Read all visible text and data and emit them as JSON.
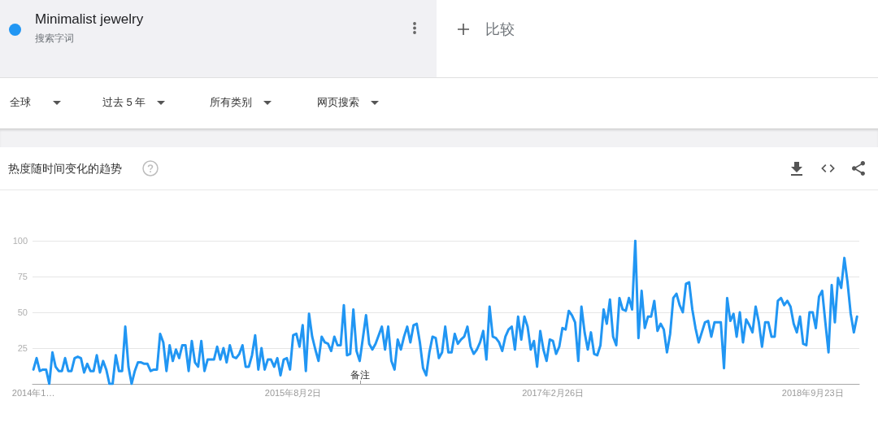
{
  "chart_data": {
    "type": "line",
    "title": "热度随时间变化的趋势",
    "annotations": [
      "搜索字词",
      "比较",
      "全球",
      "过去 5 年",
      "所有类别",
      "网页搜索",
      "备注"
    ],
    "x": [
      "2014-01-05",
      "2014-01-12",
      "2014-01-19",
      "2014-01-26",
      "2014-02-02",
      "2014-02-09",
      "2014-02-16",
      "2014-02-23",
      "2014-03-02",
      "2014-03-09",
      "2014-03-16",
      "2014-03-23",
      "2014-03-30",
      "2014-04-06",
      "2014-04-13",
      "2014-04-20",
      "2014-04-27",
      "2014-05-04",
      "2014-05-11",
      "2014-05-18",
      "2014-05-25",
      "2014-06-01",
      "2014-06-08",
      "2014-06-15",
      "2014-06-22",
      "2014-06-29",
      "2014-07-06",
      "2014-07-13",
      "2014-07-20",
      "2014-07-27",
      "2014-08-03",
      "2014-08-10",
      "2014-08-17",
      "2014-08-24",
      "2014-08-31",
      "2014-09-07",
      "2014-09-14",
      "2014-09-21",
      "2014-09-28",
      "2014-10-05",
      "2014-10-12",
      "2014-10-19",
      "2014-10-26",
      "2014-11-02",
      "2014-11-09",
      "2014-11-16",
      "2014-11-23",
      "2014-11-30",
      "2014-12-07",
      "2014-12-14",
      "2014-12-21",
      "2014-12-28",
      "2015-01-04",
      "2015-01-11",
      "2015-01-18",
      "2015-01-25",
      "2015-02-01",
      "2015-02-08",
      "2015-02-15",
      "2015-02-22",
      "2015-03-01",
      "2015-03-08",
      "2015-03-15",
      "2015-03-22",
      "2015-03-29",
      "2015-04-05",
      "2015-04-12",
      "2015-04-19",
      "2015-04-26",
      "2015-05-03",
      "2015-05-10",
      "2015-05-17",
      "2015-05-24",
      "2015-05-31",
      "2015-06-07",
      "2015-06-14",
      "2015-06-21",
      "2015-06-28",
      "2015-07-05",
      "2015-07-12",
      "2015-07-19",
      "2015-07-26",
      "2015-08-02",
      "2015-08-09",
      "2015-08-16",
      "2015-08-23",
      "2015-08-30",
      "2015-09-06",
      "2015-09-13",
      "2015-09-20",
      "2015-09-27",
      "2015-10-04",
      "2015-10-11",
      "2015-10-18",
      "2015-10-25",
      "2015-11-01",
      "2015-11-08",
      "2015-11-15",
      "2015-11-22",
      "2015-11-29",
      "2015-12-06",
      "2015-12-13",
      "2015-12-20",
      "2015-12-27",
      "2016-01-03",
      "2016-01-10",
      "2016-01-17",
      "2016-01-24",
      "2016-01-31",
      "2016-02-07",
      "2016-02-14",
      "2016-02-21",
      "2016-02-28",
      "2016-03-06",
      "2016-03-13",
      "2016-03-20",
      "2016-03-27",
      "2016-04-03",
      "2016-04-10",
      "2016-04-17",
      "2016-04-24",
      "2016-05-01",
      "2016-05-08",
      "2016-05-15",
      "2016-05-22",
      "2016-05-29",
      "2016-06-05",
      "2016-06-12",
      "2016-06-19",
      "2016-06-26",
      "2016-07-03",
      "2016-07-10",
      "2016-07-17",
      "2016-07-24",
      "2016-07-31",
      "2016-08-07",
      "2016-08-14",
      "2016-08-21",
      "2016-08-28",
      "2016-09-04",
      "2016-09-11",
      "2016-09-18",
      "2016-09-25",
      "2016-10-02",
      "2016-10-09",
      "2016-10-16",
      "2016-10-23",
      "2016-10-30",
      "2016-11-06",
      "2016-11-13",
      "2016-11-20",
      "2016-11-27",
      "2016-12-04",
      "2016-12-11",
      "2016-12-18",
      "2016-12-25",
      "2017-01-01",
      "2017-01-08",
      "2017-01-15",
      "2017-01-22",
      "2017-01-29",
      "2017-02-05",
      "2017-02-12",
      "2017-02-19",
      "2017-02-26",
      "2017-03-05",
      "2017-03-12",
      "2017-03-19",
      "2017-03-26",
      "2017-04-02",
      "2017-04-09",
      "2017-04-16",
      "2017-04-23",
      "2017-04-30",
      "2017-05-07",
      "2017-05-14",
      "2017-05-21",
      "2017-05-28",
      "2017-06-04",
      "2017-06-11",
      "2017-06-18",
      "2017-06-25",
      "2017-07-02",
      "2017-07-09",
      "2017-07-16",
      "2017-07-23",
      "2017-07-30",
      "2017-08-06",
      "2017-08-13",
      "2017-08-20",
      "2017-08-27",
      "2017-09-03",
      "2017-09-10",
      "2017-09-17",
      "2017-09-24",
      "2017-10-01",
      "2017-10-08",
      "2017-10-15",
      "2017-10-22",
      "2017-10-29",
      "2017-11-05",
      "2017-11-12",
      "2017-11-19",
      "2017-11-26",
      "2017-12-03",
      "2017-12-10",
      "2017-12-17",
      "2017-12-24",
      "2017-12-31",
      "2018-01-07",
      "2018-01-14",
      "2018-01-21",
      "2018-01-28",
      "2018-02-04",
      "2018-02-11",
      "2018-02-18",
      "2018-02-25",
      "2018-03-04",
      "2018-03-11",
      "2018-03-18",
      "2018-03-25",
      "2018-04-01",
      "2018-04-08",
      "2018-04-15",
      "2018-04-22",
      "2018-04-29",
      "2018-05-06",
      "2018-05-13",
      "2018-05-20",
      "2018-05-27",
      "2018-06-03",
      "2018-06-10",
      "2018-06-17",
      "2018-06-24",
      "2018-07-01",
      "2018-07-08",
      "2018-07-15",
      "2018-07-22",
      "2018-07-29",
      "2018-08-05",
      "2018-08-12",
      "2018-08-19",
      "2018-08-26",
      "2018-09-02",
      "2018-09-09",
      "2018-09-16",
      "2018-09-23",
      "2018-09-30",
      "2018-10-07",
      "2018-10-14",
      "2018-10-21",
      "2018-10-28",
      "2018-11-04",
      "2018-11-11",
      "2018-11-18",
      "2018-11-25",
      "2018-12-02",
      "2018-12-09",
      "2018-12-16",
      "2018-12-23",
      "2018-12-30"
    ],
    "series": [
      {
        "name": "Minimalist jewelry",
        "color": "#2196f3",
        "values": [
          10,
          18,
          9,
          10,
          10,
          0,
          22,
          12,
          9,
          9,
          18,
          9,
          9,
          18,
          19,
          18,
          8,
          14,
          9,
          9,
          20,
          8,
          16,
          10,
          0,
          0,
          20,
          9,
          9,
          40,
          12,
          0,
          9,
          15,
          15,
          14,
          14,
          9,
          10,
          10,
          35,
          29,
          9,
          27,
          16,
          24,
          18,
          27,
          27,
          9,
          30,
          15,
          12,
          30,
          9,
          17,
          17,
          17,
          26,
          17,
          25,
          15,
          27,
          19,
          18,
          21,
          27,
          12,
          12,
          20,
          34,
          10,
          25,
          10,
          17,
          17,
          12,
          18,
          6,
          17,
          18,
          10,
          34,
          35,
          26,
          41,
          9,
          49,
          33,
          24,
          16,
          33,
          29,
          28,
          23,
          33,
          27,
          27,
          55,
          20,
          21,
          52,
          23,
          16,
          32,
          48,
          28,
          24,
          28,
          34,
          40,
          24,
          40,
          16,
          10,
          31,
          24,
          33,
          40,
          29,
          41,
          42,
          29,
          11,
          6,
          22,
          33,
          32,
          18,
          22,
          40,
          22,
          22,
          35,
          28,
          31,
          33,
          40,
          26,
          21,
          24,
          29,
          37,
          17,
          54,
          33,
          32,
          29,
          23,
          33,
          38,
          40,
          24,
          47,
          31,
          47,
          40,
          24,
          30,
          12,
          37,
          24,
          16,
          31,
          30,
          21,
          26,
          39,
          38,
          51,
          48,
          43,
          16,
          54,
          36,
          24,
          36,
          21,
          20,
          27,
          52,
          42,
          59,
          33,
          27,
          60,
          52,
          51,
          60,
          52,
          100,
          32,
          65,
          39,
          47,
          47,
          58,
          37,
          42,
          38,
          22,
          35,
          60,
          63,
          55,
          50,
          70,
          71,
          52,
          39,
          29,
          36,
          43,
          44,
          33,
          43,
          43,
          43,
          11,
          60,
          44,
          49,
          33,
          50,
          29,
          45,
          41,
          36,
          54,
          43,
          26,
          43,
          43,
          33,
          33,
          58,
          60,
          55,
          58,
          54,
          42,
          36,
          47,
          28,
          27,
          50,
          50,
          39,
          61,
          65,
          43,
          22,
          69,
          43,
          74,
          67,
          88,
          71,
          49,
          36,
          47
        ]
      }
    ],
    "xlim": [
      "2014-01-03",
      "2019-01-04"
    ],
    "xticks": [
      {
        "value": "2014-01-05",
        "label": "2014年1…"
      },
      {
        "value": "2015-08-02",
        "label": "2015年8月2日"
      },
      {
        "value": "2017-02-26",
        "label": "2017年2月26日"
      },
      {
        "value": "2018-09-23",
        "label": "2018年9月23日"
      }
    ],
    "ylim": [
      0,
      100
    ],
    "yticks": [
      25,
      50,
      75,
      100
    ],
    "grid": "y",
    "legend": "top left"
  }
}
